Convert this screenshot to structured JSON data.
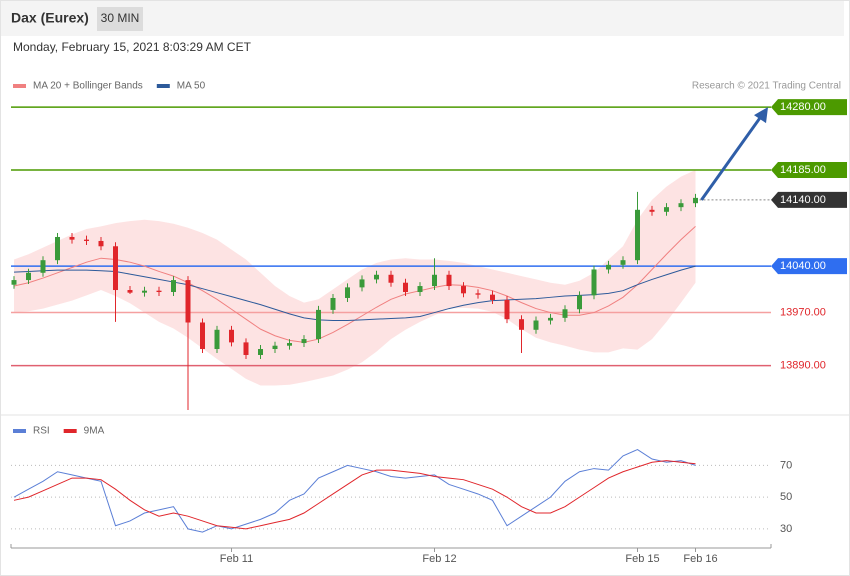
{
  "header": {
    "title": "Dax (Eurex)",
    "timeframe": "30 MIN",
    "date": "Monday, February 15, 2021 8:03:29 AM CET",
    "credit": "Research © 2021 Trading Central"
  },
  "chart_data": [
    {
      "type": "candlestick",
      "categories": [
        null,
        null,
        null,
        null,
        null,
        null,
        null,
        null,
        null,
        null,
        null,
        null,
        null,
        null,
        null,
        "Feb 11",
        null,
        null,
        null,
        null,
        null,
        null,
        null,
        null,
        null,
        null,
        null,
        null,
        null,
        "Feb 12",
        null,
        null,
        null,
        null,
        null,
        null,
        null,
        null,
        null,
        null,
        null,
        null,
        null,
        "Feb 15",
        null,
        null,
        null,
        "Feb 16"
      ],
      "open": [
        14012,
        14019,
        14030,
        14049,
        14084,
        14080,
        14078,
        14070,
        14004,
        14000,
        14003,
        14001,
        14019,
        13955,
        13915,
        13944,
        13925,
        13906,
        13915,
        13920,
        13924,
        13930,
        13974,
        13992,
        14008,
        14020,
        14027,
        14015,
        14001,
        14010,
        14027,
        14010,
        13999,
        13997,
        13989,
        13960,
        13944,
        13958,
        13962,
        13975,
        13996,
        14035,
        14042,
        14049,
        14125,
        14122,
        14129,
        14135
      ],
      "high": [
        14025,
        14036,
        14055,
        14090,
        14090,
        14086,
        14084,
        14076,
        14010,
        14009,
        14009,
        14025,
        14025,
        13961,
        13950,
        13950,
        13931,
        13921,
        13926,
        13930,
        13936,
        13980,
        13998,
        14014,
        14026,
        14033,
        14033,
        14021,
        14016,
        14052,
        14033,
        14016,
        14005,
        14003,
        13995,
        13966,
        13964,
        13968,
        13981,
        14002,
        14041,
        14048,
        14055,
        14152,
        14131,
        14135,
        14141,
        14149
      ],
      "low": [
        14006,
        14013,
        14024,
        14043,
        14074,
        14072,
        14064,
        13956,
        13998,
        13994,
        13995,
        13995,
        13823,
        13909,
        13909,
        13919,
        13900,
        13900,
        13909,
        13914,
        13918,
        13924,
        13968,
        13986,
        14002,
        14014,
        14009,
        13995,
        13995,
        14004,
        14004,
        13993,
        13991,
        13983,
        13954,
        13909,
        13938,
        13952,
        13956,
        13969,
        13990,
        14029,
        14036,
        14043,
        14116,
        14116,
        14123,
        14129
      ],
      "close": [
        14019,
        14030,
        14049,
        14084,
        14080,
        14078,
        14070,
        14004,
        14000,
        14003,
        14001,
        14019,
        13955,
        13915,
        13944,
        13925,
        13906,
        13915,
        13920,
        13924,
        13930,
        13974,
        13992,
        14008,
        14020,
        14027,
        14015,
        14001,
        14010,
        14027,
        14010,
        13999,
        13997,
        13989,
        13960,
        13944,
        13958,
        13962,
        13975,
        13996,
        14035,
        14042,
        14049,
        14125,
        14122,
        14129,
        14135,
        14143
      ],
      "up_color": "#3a9a3a",
      "down_color": "#e0262b",
      "ylim": [
        13823,
        14351
      ],
      "levels": [
        {
          "value": 14280,
          "label": "14280.00",
          "color": "#4c9a00",
          "line": "solid",
          "box": true
        },
        {
          "value": 14185,
          "label": "14185.00",
          "color": "#4c9a00",
          "line": "solid",
          "box": true
        },
        {
          "value": 14140,
          "label": "14140.00",
          "color": "#333333",
          "line": "dotted",
          "box": true
        },
        {
          "value": 14040,
          "label": "14040.00",
          "color": "#2f6ef0",
          "line": "solid",
          "box": true
        },
        {
          "value": 13970,
          "label": "13970.00",
          "color": "#f5a0a0",
          "line": "solid",
          "box": false
        },
        {
          "value": 13890,
          "label": "13890.00",
          "color": "#e06070",
          "line": "solid",
          "box": false
        }
      ],
      "series": [
        {
          "name": "MA 20 + Bollinger Bands",
          "color": "#f08080",
          "band_color": "#fcdcdc",
          "values": [
            14010,
            14015,
            14022,
            14030,
            14038,
            14046,
            14052,
            14050,
            14046,
            14040,
            14032,
            14025,
            14015,
            14003,
            13990,
            13975,
            13960,
            13945,
            13935,
            13928,
            13925,
            13930,
            13940,
            13952,
            13965,
            13978,
            13990,
            13998,
            14003,
            14008,
            14012,
            14011,
            14008,
            14003,
            13995,
            13985,
            13976,
            13970,
            13966,
            13966,
            13970,
            13980,
            13993,
            14012,
            14035,
            14058,
            14080,
            14100
          ],
          "upper": [
            14050,
            14058,
            14068,
            14078,
            14088,
            14096,
            14100,
            14105,
            14108,
            14110,
            14108,
            14104,
            14098,
            14090,
            14080,
            14065,
            14050,
            14030,
            14010,
            13995,
            13985,
            13990,
            14005,
            14020,
            14035,
            14045,
            14050,
            14052,
            14050,
            14050,
            14048,
            14045,
            14040,
            14035,
            14030,
            14025,
            14020,
            14015,
            14012,
            14018,
            14030,
            14050,
            14070,
            14110,
            14140,
            14160,
            14175,
            14185
          ],
          "lower": [
            13970,
            13972,
            13976,
            13982,
            13988,
            13996,
            14004,
            13995,
            13984,
            13970,
            13956,
            13946,
            13932,
            13916,
            13900,
            13885,
            13870,
            13860,
            13860,
            13861,
            13865,
            13870,
            13875,
            13884,
            13895,
            13911,
            13930,
            13944,
            13956,
            13966,
            13976,
            13977,
            13976,
            13971,
            13960,
            13945,
            13932,
            13925,
            13920,
            13914,
            13910,
            13910,
            13916,
            13914,
            13930,
            13956,
            13985,
            14015
          ]
        },
        {
          "name": "MA 50",
          "color": "#2d5a9a",
          "values": [
            14031,
            14032,
            14033,
            14034,
            14034,
            14034,
            14033,
            14032,
            14028,
            14024,
            14020,
            14016,
            14012,
            14006,
            14000,
            13994,
            13988,
            13982,
            13975,
            13968,
            13962,
            13959,
            13958,
            13958,
            13959,
            13960,
            13961,
            13962,
            13964,
            13970,
            13976,
            13981,
            13985,
            13988,
            13989,
            13990,
            13991,
            13993,
            13995,
            13996,
            13997,
            13999,
            14003,
            14012,
            14020,
            14027,
            14034,
            14040
          ]
        }
      ]
    },
    {
      "type": "line",
      "ylim": [
        23,
        86
      ],
      "yticks": [
        70,
        50,
        30
      ],
      "series": [
        {
          "name": "RSI",
          "color": "#5b7fd6",
          "values": [
            50,
            55,
            60,
            66,
            64,
            62,
            60,
            32,
            35,
            40,
            42,
            44,
            30,
            28,
            32,
            30,
            33,
            36,
            40,
            48,
            52,
            62,
            66,
            70,
            68,
            66,
            63,
            62,
            63,
            64,
            58,
            55,
            52,
            48,
            32,
            38,
            44,
            50,
            60,
            66,
            68,
            67,
            76,
            80,
            74,
            72,
            73,
            70
          ]
        },
        {
          "name": "9MA",
          "color": "#e0262b",
          "values": [
            48,
            50,
            54,
            58,
            62,
            62,
            61,
            55,
            48,
            42,
            38,
            40,
            38,
            35,
            32,
            31,
            30,
            32,
            34,
            36,
            40,
            46,
            52,
            58,
            64,
            67,
            67,
            66,
            65,
            63,
            62,
            61,
            58,
            55,
            50,
            44,
            40,
            40,
            44,
            50,
            56,
            62,
            66,
            69,
            72,
            73,
            72,
            71
          ]
        }
      ]
    }
  ]
}
